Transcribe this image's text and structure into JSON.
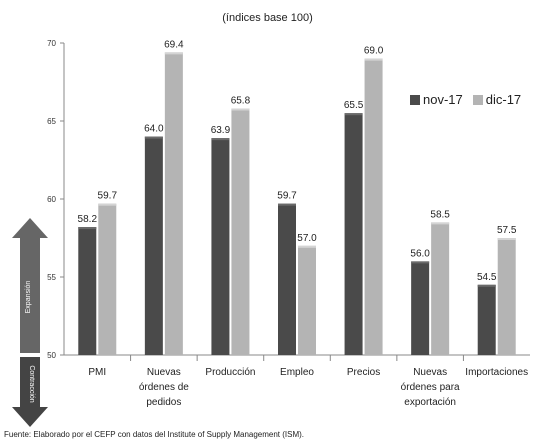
{
  "chart_data": {
    "type": "bar",
    "subtitle": "(índices base 100)",
    "categories": [
      [
        "PMI"
      ],
      [
        "Nuevas",
        "órdenes de",
        "pedidos"
      ],
      [
        "Producción"
      ],
      [
        "Empleo"
      ],
      [
        "Precios"
      ],
      [
        "Nuevas",
        "órdenes para",
        "exportación"
      ],
      [
        "Importaciones"
      ]
    ],
    "series": [
      {
        "name": "nov-17",
        "values": [
          58.2,
          64.0,
          63.9,
          59.7,
          65.5,
          56.0,
          54.5
        ],
        "color": "#4a4a4a"
      },
      {
        "name": "dic-17",
        "values": [
          59.7,
          69.4,
          65.8,
          57.0,
          69.0,
          58.5,
          57.5
        ],
        "color": "#b4b4b4"
      }
    ],
    "value_labels": [
      [
        "58.2",
        "64.0",
        "63.9",
        "59.7",
        "65.5",
        "56.0",
        "54.5"
      ],
      [
        "59.7",
        "69.4",
        "65.8",
        "57.0",
        "69.0",
        "58.5",
        "57.5"
      ]
    ],
    "ylim": [
      50,
      70
    ],
    "yticks": [
      "50",
      "55",
      "60",
      "65",
      "70"
    ],
    "grid": false,
    "legend_position": "right",
    "annotations": {
      "expansion": "Expansión",
      "contraction": "Contracción"
    },
    "source": "Fuente: Elaborado por el CEFP con datos del Institute of Supply Management (ISM)."
  }
}
